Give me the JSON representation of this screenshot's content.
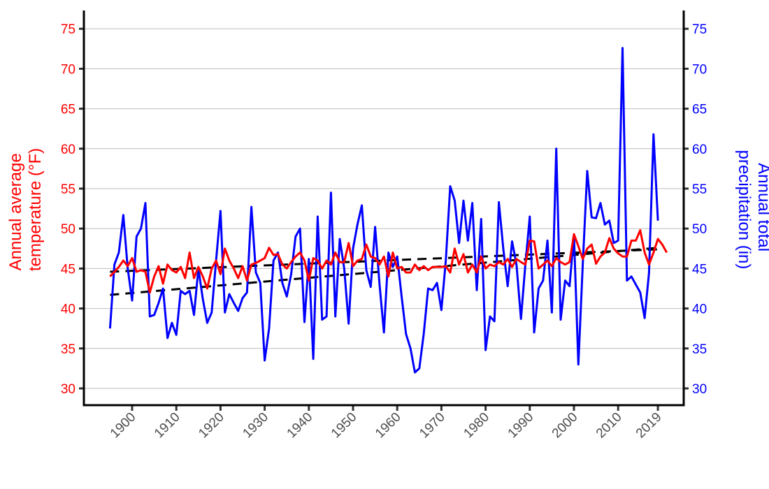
{
  "chart_data": {
    "type": "line",
    "title": "",
    "xlabel": "",
    "ylabel_left": [
      "Annual average",
      "temperature (°F)"
    ],
    "ylabel_right": [
      "Annual total",
      "precipitation (in)"
    ],
    "x_ticks": [
      "1900",
      "1910",
      "1920",
      "1930",
      "1940",
      "1950",
      "1960",
      "1970",
      "1980",
      "1990",
      "2000",
      "2010",
      "2019"
    ],
    "x_tick_values": [
      1900,
      1910,
      1920,
      1930,
      1940,
      1950,
      1960,
      1970,
      1980,
      1990,
      2000,
      2010,
      2019
    ],
    "y_ticks": [
      "30",
      "35",
      "40",
      "45",
      "50",
      "55",
      "60",
      "65",
      "70",
      "75"
    ],
    "ylim": [
      28,
      77
    ],
    "xlim": [
      1892,
      2022
    ],
    "grid": "horizontal",
    "colors": {
      "temperature": "#ff0000",
      "precipitation": "#0000ff",
      "trend": "#000000",
      "grid": "#bebebe"
    },
    "x_start": 1895,
    "series": [
      {
        "name": "Annual average temperature (°F)",
        "axis": "left",
        "color": "#ff0000",
        "values": [
          44.0,
          44.6,
          45.2,
          46.0,
          45.3,
          46.3,
          44.6,
          44.8,
          44.6,
          42.0,
          44.0,
          45.3,
          43.1,
          45.5,
          44.8,
          44.5,
          45.2,
          43.8,
          47.0,
          43.8,
          45.2,
          44.0,
          42.5,
          45.0,
          46.0,
          44.3,
          47.5,
          46.0,
          45.0,
          43.8,
          45.3,
          43.5,
          45.5,
          45.7,
          46.0,
          46.3,
          47.6,
          46.7,
          46.8,
          45.5,
          45.0,
          45.8,
          46.5,
          47.0,
          46.0,
          43.5,
          46.3,
          46.0,
          45.0,
          46.0,
          45.5,
          47.0,
          45.8,
          45.8,
          48.2,
          45.3,
          46.0,
          46.2,
          48.0,
          46.5,
          46.3,
          45.5,
          46.5,
          44.0,
          47.0,
          45.0,
          45.2,
          44.5,
          44.5,
          45.5,
          44.8,
          45.3,
          44.8,
          45.2,
          45.2,
          45.2,
          45.3,
          44.5,
          47.5,
          45.5,
          46.8,
          44.5,
          45.5,
          44.5,
          46.5,
          45.0,
          45.5,
          45.3,
          45.8,
          45.5,
          46.2,
          45.2,
          46.2,
          45.8,
          45.5,
          48.5,
          48.4,
          45.0,
          45.5,
          46.0,
          45.3,
          46.3,
          45.8,
          45.5,
          45.8,
          49.3,
          47.8,
          46.2,
          47.5,
          48.0,
          45.6,
          46.5,
          47.0,
          48.8,
          47.5,
          46.9,
          46.5,
          46.5,
          48.5,
          48.5,
          49.8,
          47.0,
          45.5,
          47.0,
          48.7,
          48.0,
          47.0
        ]
      },
      {
        "name": "Annual total precipitation (in)",
        "axis": "right",
        "color": "#0000ff",
        "values": [
          37.5,
          45.5,
          47.0,
          51.7,
          45.0,
          41.0,
          49.0,
          50.0,
          53.2,
          39.0,
          39.2,
          40.7,
          42.5,
          36.3,
          38.2,
          36.7,
          42.2,
          41.8,
          42.2,
          39.2,
          45.0,
          41.2,
          38.2,
          39.5,
          46.0,
          52.2,
          39.5,
          41.8,
          40.7,
          39.7,
          41.3,
          42.0,
          52.7,
          44.5,
          43.2,
          33.5,
          37.5,
          46.0,
          47.0,
          43.2,
          41.5,
          44.3,
          49.0,
          50.0,
          38.3,
          46.2,
          33.7,
          51.5,
          38.6,
          39.0,
          54.5,
          39.0,
          48.7,
          45.0,
          38.1,
          47.5,
          50.5,
          52.9,
          44.8,
          42.7,
          50.2,
          43.0,
          37.0,
          47.0,
          45.2,
          46.5,
          41.5,
          36.8,
          35.0,
          32.0,
          32.5,
          36.8,
          42.5,
          42.3,
          43.2,
          39.8,
          46.0,
          55.3,
          53.5,
          48.2,
          53.5,
          48.5,
          53.2,
          42.3,
          51.2,
          34.8,
          39.0,
          38.4,
          53.3,
          47.5,
          42.8,
          48.4,
          45.5,
          38.7,
          45.5,
          51.5,
          37.0,
          42.5,
          43.5,
          48.5,
          39.5,
          60.0,
          38.6,
          43.5,
          42.8,
          49.2,
          33.0,
          45.5,
          57.2,
          51.4,
          51.3,
          53.2,
          50.5,
          51.0,
          48.2,
          48.5,
          72.6,
          43.5,
          44.0,
          43.0,
          42.0,
          38.8,
          44.5,
          61.8,
          51.0
        ]
      },
      {
        "name": "Temperature trend",
        "style": "dashed",
        "color": "#000000",
        "start": [
          1895,
          44.6
        ],
        "end": [
          2019,
          47.4
        ]
      },
      {
        "name": "Precipitation trend",
        "style": "dashed",
        "color": "#000000",
        "start": [
          1895,
          41.7
        ],
        "end": [
          2019,
          47.6
        ]
      }
    ]
  }
}
